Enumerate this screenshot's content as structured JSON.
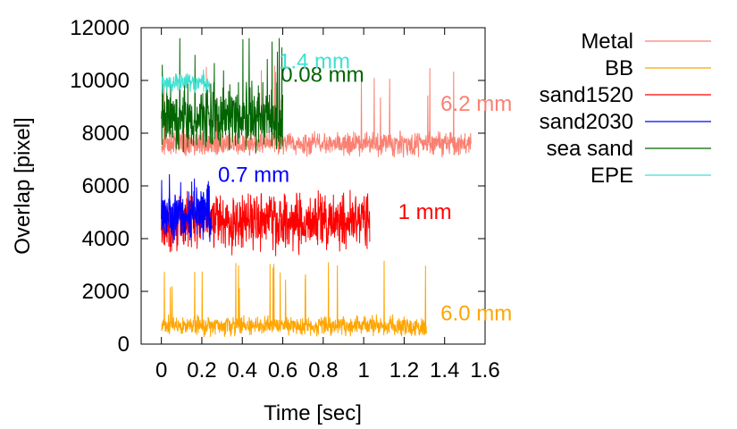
{
  "chart_data": {
    "type": "line",
    "title": "",
    "xlabel": "Time [sec]",
    "ylabel": "Overlap [pixel]",
    "xlim": [
      -0.1,
      1.6
    ],
    "ylim": [
      0,
      12000
    ],
    "xticks": [
      "0",
      "0.2",
      "0.4",
      "0.6",
      "0.8",
      "1",
      "1.2",
      "1.4",
      "1.6"
    ],
    "xtick_values": [
      0,
      0.2,
      0.4,
      0.6,
      0.8,
      1.0,
      1.2,
      1.4,
      1.6
    ],
    "yticks": [
      "0",
      "2000",
      "4000",
      "6000",
      "8000",
      "10000",
      "12000"
    ],
    "ytick_values": [
      0,
      2000,
      4000,
      6000,
      8000,
      10000,
      12000
    ],
    "grid": false,
    "legend_position": "right",
    "series": [
      {
        "name": "Metal",
        "color": "#fa8072",
        "x_end": 1.53,
        "mean": 7600,
        "spread": 550,
        "spike_max": 10800,
        "annotation": "6.2 mm",
        "annotation_x": 1.38,
        "annotation_y": 8850
      },
      {
        "name": "BB",
        "color": "#ffa500",
        "x_end": 1.31,
        "mean": 700,
        "spread": 450,
        "spike_max": 3200,
        "annotation": "6.0 mm",
        "annotation_x": 1.38,
        "annotation_y": 900
      },
      {
        "name": "sand1520",
        "color": "#ff0000",
        "x_end": 1.03,
        "mean": 4600,
        "spread": 1300,
        "spike_max": 5900,
        "annotation": "1 mm",
        "annotation_x": 1.17,
        "annotation_y": 4750
      },
      {
        "name": "sand2030",
        "color": "#0000ff",
        "x_end": 0.25,
        "mean": 4900,
        "spread": 1300,
        "spike_max": 6600,
        "annotation": "0.7 mm",
        "annotation_x": 0.28,
        "annotation_y": 6150
      },
      {
        "name": "sea sand",
        "color": "#006400",
        "x_end": 0.6,
        "mean": 8600,
        "spread": 1500,
        "spike_max": 11800,
        "annotation": "0.08 mm",
        "annotation_x": 0.59,
        "annotation_y": 9950
      },
      {
        "name": "EPE",
        "color": "#40e0d0",
        "x_end": 0.24,
        "mean": 9900,
        "spread": 450,
        "spike_max": 10700,
        "annotation": "1.4 mm",
        "annotation_x": 0.58,
        "annotation_y": 10450
      }
    ]
  }
}
